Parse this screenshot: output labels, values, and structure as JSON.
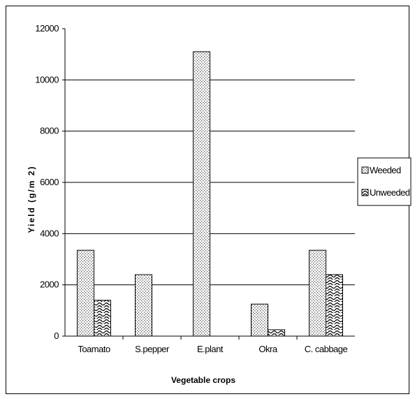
{
  "chart_data": {
    "type": "bar",
    "title": "",
    "xlabel": "Vegetable crops",
    "ylabel": "Yield (g/m 2)",
    "categories": [
      "Toamato",
      "S.pepper",
      "E.plant",
      "Okra",
      "C. cabbage"
    ],
    "series": [
      {
        "name": "Weeded",
        "pattern": "dots",
        "values": [
          3350,
          2400,
          11100,
          1250,
          3350
        ]
      },
      {
        "name": "Unweeded",
        "pattern": "waves",
        "values": [
          1400,
          0,
          0,
          250,
          2400
        ]
      }
    ],
    "ylim": [
      0,
      12000
    ],
    "yticks": [
      0,
      2000,
      4000,
      6000,
      8000,
      10000,
      12000
    ],
    "grid": true,
    "legend_position": "right"
  }
}
